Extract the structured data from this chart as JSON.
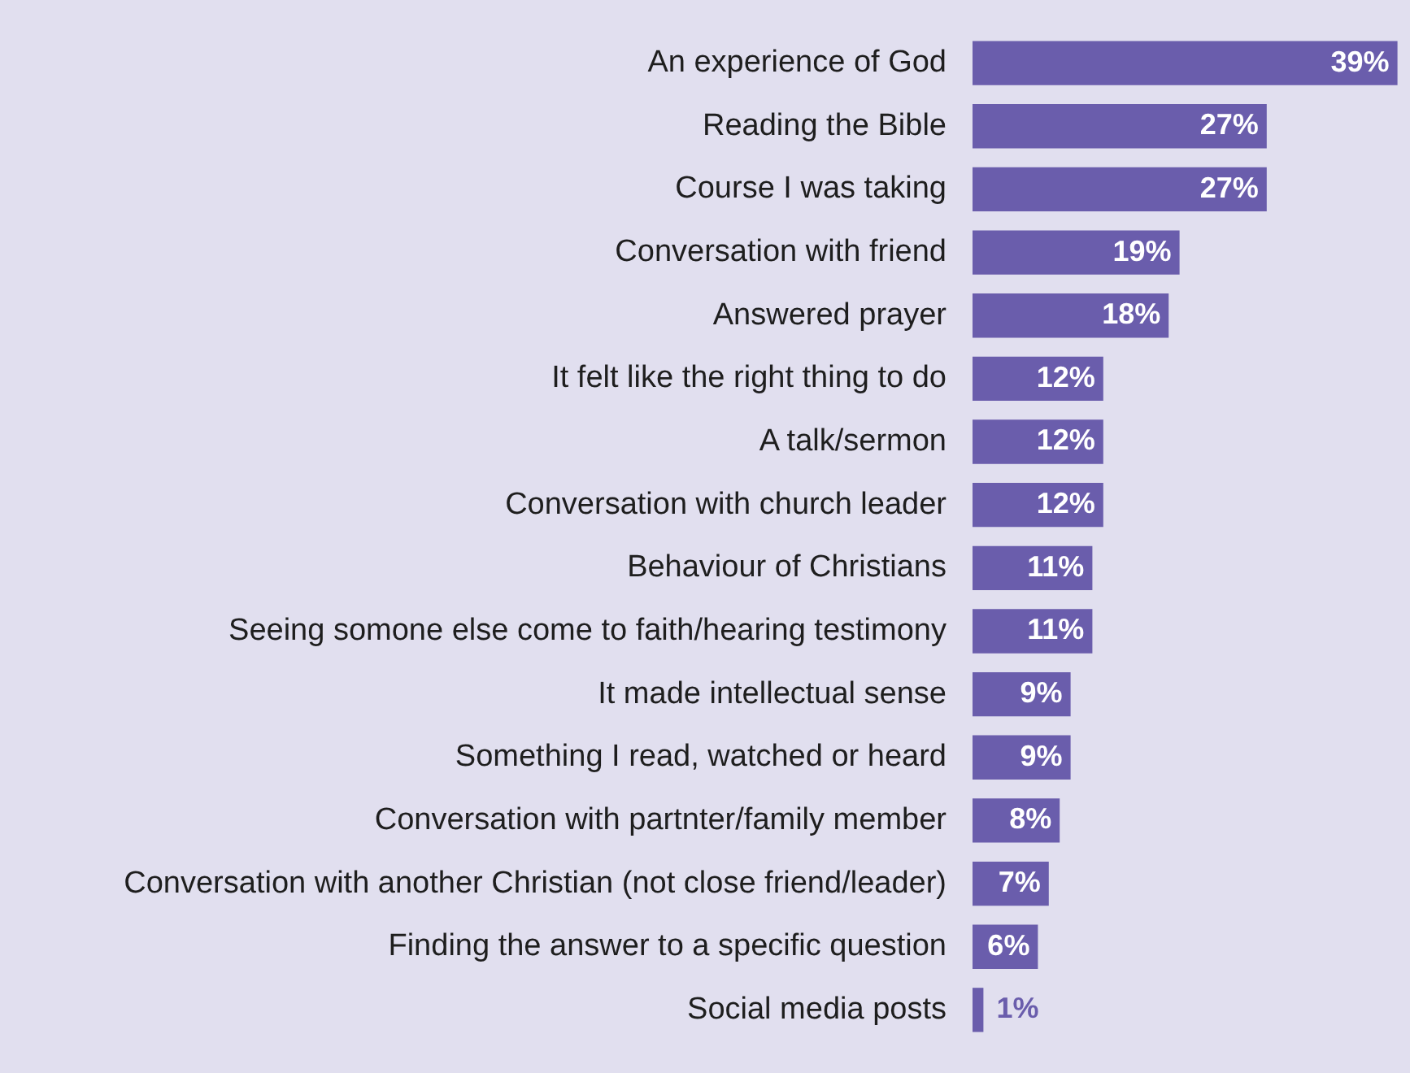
{
  "chart_data": {
    "type": "bar",
    "orientation": "horizontal",
    "categories": [
      "An experience of God",
      "Reading the Bible",
      "Course I was taking",
      "Conversation with friend",
      "Answered prayer",
      "It felt like the right thing to do",
      "A talk/sermon",
      "Conversation with church leader",
      "Behaviour of Christians",
      "Seeing somone else come to faith/hearing testimony",
      "It made intellectual sense",
      "Something I read, watched or heard",
      "Conversation with partnter/family member",
      "Conversation with another Christian (not close friend/leader)",
      "Finding the answer to a specific question",
      "Social media posts"
    ],
    "values": [
      39,
      27,
      27,
      19,
      18,
      12,
      12,
      12,
      11,
      11,
      9,
      9,
      8,
      7,
      6,
      1
    ],
    "value_labels": [
      "39%",
      "27%",
      "27%",
      "19%",
      "18%",
      "12%",
      "12%",
      "12%",
      "11%",
      "11%",
      "9%",
      "9%",
      "8%",
      "7%",
      "6%",
      "1%"
    ],
    "color": "#6a5dac",
    "legend": false
  }
}
